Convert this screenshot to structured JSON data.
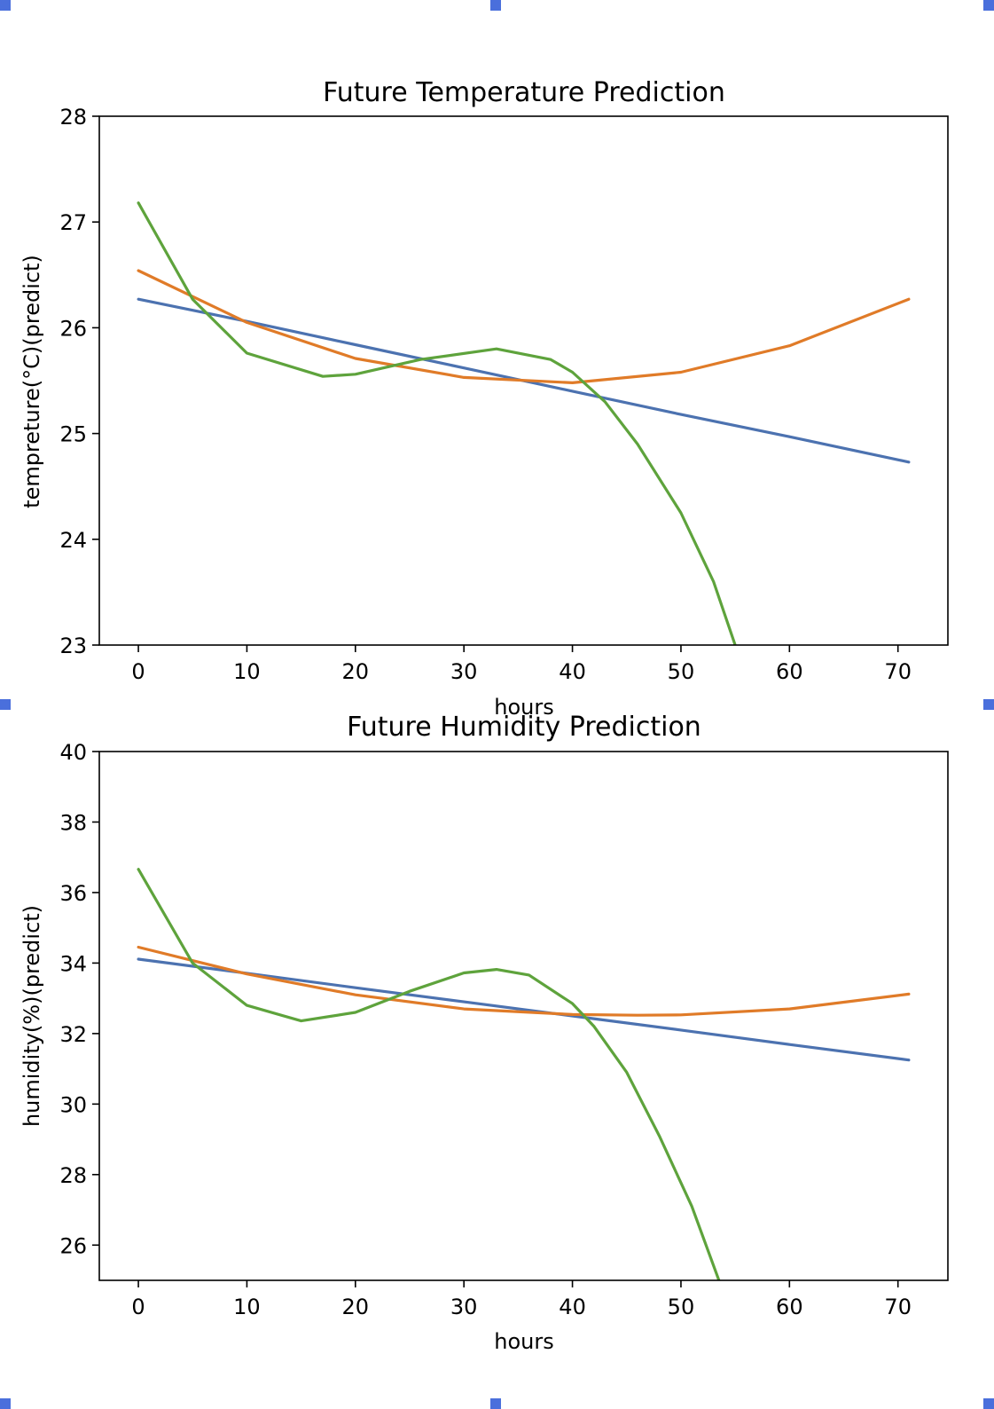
{
  "chart_data": [
    {
      "type": "line",
      "title": "Future Temperature Prediction",
      "xlabel": "hours",
      "ylabel": "tempreture(°C)(predict)",
      "xlim": [
        -3.6,
        74.6
      ],
      "ylim": [
        23,
        28
      ],
      "xticks": [
        "0",
        "10",
        "20",
        "30",
        "40",
        "50",
        "60",
        "70"
      ],
      "yticks": [
        "23",
        "24",
        "25",
        "26",
        "27",
        "28"
      ],
      "grid": false,
      "colors": [
        "#4c72b0",
        "#e07b28",
        "#5ea33c"
      ],
      "series": [
        {
          "x": [
            0,
            10,
            20,
            30,
            40,
            50,
            60,
            71
          ],
          "y": [
            26.27,
            26.06,
            25.84,
            25.62,
            25.4,
            25.18,
            24.97,
            24.73
          ]
        },
        {
          "x": [
            0,
            10,
            20,
            30,
            40,
            50,
            60,
            71
          ],
          "y": [
            26.54,
            26.05,
            25.71,
            25.53,
            25.48,
            25.58,
            25.83,
            26.27
          ]
        },
        {
          "x": [
            0,
            5,
            10,
            17,
            20,
            26,
            33,
            38,
            40,
            43,
            46,
            50,
            53,
            55
          ],
          "y": [
            27.18,
            26.27,
            25.76,
            25.54,
            25.56,
            25.7,
            25.8,
            25.7,
            25.58,
            25.3,
            24.9,
            24.25,
            23.6,
            23.0
          ]
        }
      ]
    },
    {
      "type": "line",
      "title": "Future Humidity Prediction",
      "xlabel": "hours",
      "ylabel": "humidity(%)(predict)",
      "xlim": [
        -3.6,
        74.6
      ],
      "ylim": [
        25,
        40
      ],
      "xticks": [
        "0",
        "10",
        "20",
        "30",
        "40",
        "50",
        "60",
        "70"
      ],
      "yticks": [
        "26",
        "28",
        "30",
        "32",
        "34",
        "36",
        "38",
        "40"
      ],
      "grid": false,
      "colors": [
        "#4c72b0",
        "#e07b28",
        "#5ea33c"
      ],
      "series": [
        {
          "x": [
            0,
            10,
            20,
            30,
            40,
            50,
            60,
            71
          ],
          "y": [
            34.11,
            33.71,
            33.3,
            32.9,
            32.5,
            32.1,
            31.69,
            31.25
          ]
        },
        {
          "x": [
            0,
            10,
            20,
            30,
            40,
            46,
            50,
            60,
            71
          ],
          "y": [
            34.45,
            33.69,
            33.1,
            32.7,
            32.54,
            32.52,
            32.53,
            32.7,
            33.12
          ]
        },
        {
          "x": [
            0,
            5,
            10,
            15,
            20,
            25,
            30,
            33,
            36,
            40,
            42,
            45,
            48,
            51,
            53.5
          ],
          "y": [
            36.66,
            34.0,
            32.8,
            32.36,
            32.6,
            33.2,
            33.72,
            33.82,
            33.66,
            32.85,
            32.2,
            30.9,
            29.1,
            27.1,
            25.0
          ]
        }
      ]
    }
  ]
}
